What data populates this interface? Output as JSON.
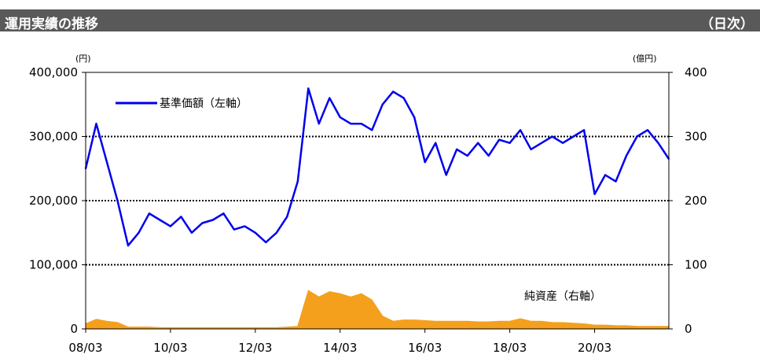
{
  "header": {
    "title": "運用実績の推移",
    "period": "（日次）"
  },
  "chart_data": {
    "type": "line",
    "left_unit": "(円)",
    "right_unit": "(億円)",
    "x_tick_labels": [
      "08/03",
      "10/03",
      "12/03",
      "14/03",
      "16/03",
      "18/03",
      "20/03"
    ],
    "left_y_ticks": [
      "0",
      "100,000",
      "200,000",
      "300,000",
      "400,000"
    ],
    "right_y_ticks": [
      "0",
      "100",
      "200",
      "300",
      "400"
    ],
    "left_ylim": [
      0,
      400000
    ],
    "right_ylim": [
      0,
      400
    ],
    "grid": "horizontal dotted",
    "x": [
      "2008-03",
      "2008-06",
      "2008-09",
      "2008-12",
      "2009-03",
      "2009-06",
      "2009-09",
      "2009-12",
      "2010-03",
      "2010-06",
      "2010-09",
      "2010-12",
      "2011-03",
      "2011-06",
      "2011-09",
      "2011-12",
      "2012-03",
      "2012-06",
      "2012-09",
      "2012-12",
      "2013-03",
      "2013-06",
      "2013-09",
      "2013-12",
      "2014-03",
      "2014-06",
      "2014-09",
      "2014-12",
      "2015-03",
      "2015-06",
      "2015-09",
      "2015-12",
      "2016-03",
      "2016-06",
      "2016-09",
      "2016-12",
      "2017-03",
      "2017-06",
      "2017-09",
      "2017-12",
      "2018-03",
      "2018-06",
      "2018-09",
      "2018-12",
      "2019-03",
      "2019-06",
      "2019-09",
      "2019-12",
      "2020-03",
      "2020-06",
      "2020-09",
      "2020-12",
      "2021-03",
      "2021-06",
      "2021-09",
      "2021-12"
    ],
    "series": [
      {
        "name": "基準価額（左軸）",
        "axis": "left",
        "color": "#0000ee",
        "values": [
          250000,
          320000,
          260000,
          200000,
          130000,
          150000,
          180000,
          170000,
          160000,
          175000,
          150000,
          165000,
          170000,
          180000,
          155000,
          160000,
          150000,
          135000,
          150000,
          175000,
          230000,
          375000,
          320000,
          360000,
          330000,
          320000,
          320000,
          310000,
          350000,
          370000,
          360000,
          330000,
          260000,
          290000,
          240000,
          280000,
          270000,
          290000,
          270000,
          295000,
          290000,
          310000,
          280000,
          290000,
          300000,
          290000,
          300000,
          310000,
          210000,
          240000,
          230000,
          270000,
          300000,
          310000,
          290000,
          265000
        ]
      },
      {
        "name": "純資産（右軸）",
        "axis": "right",
        "color": "#f5a01c",
        "values": [
          8,
          15,
          12,
          10,
          3,
          3,
          3,
          2,
          2,
          2,
          2,
          2,
          2,
          2,
          2,
          2,
          2,
          2,
          2,
          3,
          4,
          60,
          50,
          58,
          55,
          50,
          55,
          45,
          20,
          12,
          14,
          14,
          13,
          12,
          12,
          12,
          12,
          11,
          11,
          12,
          12,
          16,
          12,
          12,
          10,
          10,
          9,
          8,
          6,
          6,
          5,
          5,
          4,
          4,
          4,
          4
        ]
      }
    ]
  }
}
